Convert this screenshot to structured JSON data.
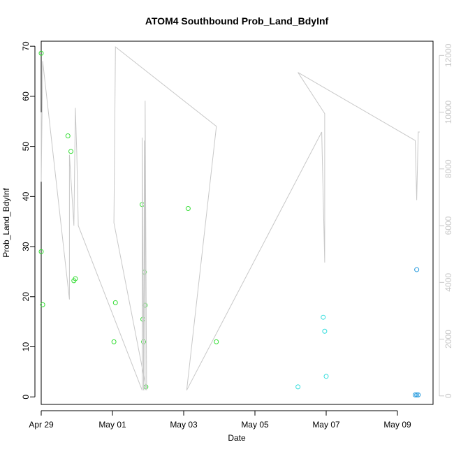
{
  "chart_data": {
    "type": "scatter",
    "title": "ATOM4 Southbound Prob_Land_BdyInf",
    "xlabel": "Date",
    "ylabel": "Prob_Land_BdyInf",
    "x_axis": {
      "type": "date",
      "range": [
        "2024-04-29T00:00",
        "2024-05-10T00:00"
      ],
      "ticks": [
        {
          "value": "2024-04-29",
          "label": "Apr 29"
        },
        {
          "value": "2024-05-01",
          "label": "May 01"
        },
        {
          "value": "2024-05-03",
          "label": "May 03"
        },
        {
          "value": "2024-05-05",
          "label": "May 05"
        },
        {
          "value": "2024-05-07",
          "label": "May 07"
        },
        {
          "value": "2024-05-09",
          "label": "May 09"
        }
      ]
    },
    "y_axis_left": {
      "range": [
        -1.5,
        71
      ],
      "ticks": [
        0,
        10,
        20,
        30,
        40,
        50,
        60,
        70
      ]
    },
    "y_axis_right": {
      "range": [
        -300,
        12500
      ],
      "ticks": [
        0,
        2000,
        4000,
        6000,
        8000,
        10000,
        12000
      ],
      "color": "#c8c8c8"
    },
    "grid": false,
    "series": [
      {
        "style": "points",
        "axis": "left",
        "color": "#33dd33",
        "points": [
          {
            "x": "2024-04-29T00:00",
            "y": 68.6
          },
          {
            "x": "2024-04-29T00:00",
            "y": 29.0
          },
          {
            "x": "2024-04-29T01:00",
            "y": 18.4
          },
          {
            "x": "2024-04-29T18:00",
            "y": 52.1
          },
          {
            "x": "2024-04-29T20:00",
            "y": 49.0
          },
          {
            "x": "2024-04-29T22:00",
            "y": 23.2
          },
          {
            "x": "2024-04-29T23:00",
            "y": 23.6
          },
          {
            "x": "2024-05-01T01:00",
            "y": 11.0
          },
          {
            "x": "2024-05-01T02:00",
            "y": 18.8
          },
          {
            "x": "2024-05-01T20:00",
            "y": 38.4
          },
          {
            "x": "2024-05-01T20:30",
            "y": 15.5
          },
          {
            "x": "2024-05-01T21:00",
            "y": 11.0
          },
          {
            "x": "2024-05-01T21:30",
            "y": 24.9
          },
          {
            "x": "2024-05-01T22:00",
            "y": 18.3
          },
          {
            "x": "2024-05-01T22:30",
            "y": 2.0
          },
          {
            "x": "2024-05-03T03:00",
            "y": 37.6
          },
          {
            "x": "2024-05-03T22:00",
            "y": 11.0
          }
        ]
      },
      {
        "style": "points",
        "axis": "left",
        "color": "#33dddd",
        "points": [
          {
            "x": "2024-05-06T05:00",
            "y": 2.0
          },
          {
            "x": "2024-05-06T22:00",
            "y": 15.9
          },
          {
            "x": "2024-05-06T23:00",
            "y": 13.1
          },
          {
            "x": "2024-05-07T00:00",
            "y": 4.1
          }
        ]
      },
      {
        "style": "points",
        "axis": "left",
        "color": "#2299dd",
        "points": [
          {
            "x": "2024-05-09T13:00",
            "y": 25.4
          },
          {
            "x": "2024-05-09T12:00",
            "y": 0.4
          },
          {
            "x": "2024-05-09T13:00",
            "y": 0.4
          },
          {
            "x": "2024-05-09T14:00",
            "y": 0.4
          }
        ]
      },
      {
        "style": "line",
        "axis": "right",
        "color": "#c8c8c8",
        "points": [
          {
            "x": "2024-04-29T00:00",
            "y": 10000
          },
          {
            "x": "2024-04-29T00:00",
            "y": 7550
          },
          {
            "x": "2024-04-29T01:00",
            "y": 11800
          },
          {
            "x": "2024-04-29T19:00",
            "y": 3400
          },
          {
            "x": "2024-04-29T19:00",
            "y": 8500
          },
          {
            "x": "2024-04-29T22:00",
            "y": 6000
          },
          {
            "x": "2024-04-29T23:00",
            "y": 10150
          },
          {
            "x": "2024-04-30T00:00",
            "y": 8500
          },
          {
            "x": "2024-04-30T01:00",
            "y": 6000
          },
          {
            "x": "2024-05-01T20:00",
            "y": 200
          },
          {
            "x": "2024-05-01T20:00",
            "y": 9100
          },
          {
            "x": "2024-05-01T21:00",
            "y": 200
          },
          {
            "x": "2024-05-01T21:30",
            "y": 9000
          },
          {
            "x": "2024-05-01T22:00",
            "y": 200
          },
          {
            "x": "2024-05-01T22:00",
            "y": 10400
          },
          {
            "x": "2024-05-01T23:00",
            "y": 200
          },
          {
            "x": "2024-05-01T01:00",
            "y": 6100
          },
          {
            "x": "2024-05-01T02:00",
            "y": 12300
          },
          {
            "x": "2024-05-03T22:00",
            "y": 9500
          },
          {
            "x": "2024-05-03T02:00",
            "y": 200
          },
          {
            "x": "2024-05-06T21:00",
            "y": 9300
          },
          {
            "x": "2024-05-06T23:00",
            "y": 4700
          },
          {
            "x": "2024-05-06T23:00",
            "y": 9950
          },
          {
            "x": "2024-05-06T05:00",
            "y": 11400
          },
          {
            "x": "2024-05-09T12:00",
            "y": 9000
          },
          {
            "x": "2024-05-09T13:00",
            "y": 6900
          },
          {
            "x": "2024-05-09T14:00",
            "y": 9300
          },
          {
            "x": "2024-05-09T15:00",
            "y": 9300
          }
        ]
      }
    ]
  }
}
